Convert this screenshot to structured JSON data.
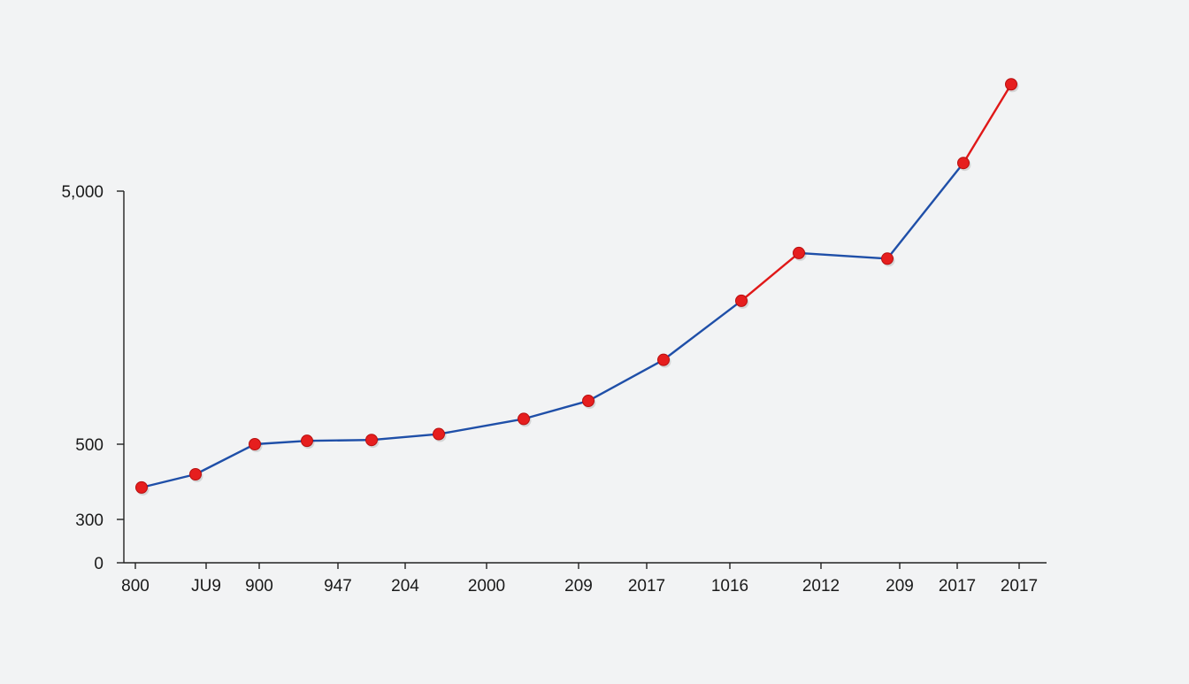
{
  "chart_data": {
    "type": "line",
    "title": "",
    "xlabel": "",
    "ylabel": "",
    "grid": false,
    "legend": "none",
    "colors": {
      "line": "#1f4fa8",
      "line_highlight": "#e01818",
      "marker": "#e61e1e",
      "axis": "#222222",
      "background": "#f2f3f4"
    },
    "y_tick_labels": [
      "0",
      "300",
      "500",
      "5,000"
    ],
    "y_tick_values": [
      0,
      300,
      500,
      5000
    ],
    "x_tick_labels": [
      "800",
      "JU9",
      "900",
      "947",
      "204",
      "2000",
      "209",
      "2017",
      "1016",
      "2012",
      "209",
      "2017",
      "2017"
    ],
    "series": [
      {
        "points": [
          {
            "x": "800",
            "y": 385
          },
          {
            "x": "JU9",
            "y": 420
          },
          {
            "x": "900",
            "y": 500
          },
          {
            "x": "947",
            "y": 560
          },
          {
            "x": "204",
            "y": 575
          },
          {
            "x": "2000",
            "y": 680
          },
          {
            "x": "209",
            "y": 950
          },
          {
            "x": "2017",
            "y": 1270
          },
          {
            "x": "1016",
            "y": 2000
          },
          {
            "x": "2012",
            "y": 3050
          },
          {
            "x": "209",
            "y": 3900
          },
          {
            "x": "2017",
            "y": 3800
          },
          {
            "x": "2017",
            "y": 5500
          },
          {
            "x": "2017",
            "y": 6900
          }
        ]
      }
    ]
  }
}
